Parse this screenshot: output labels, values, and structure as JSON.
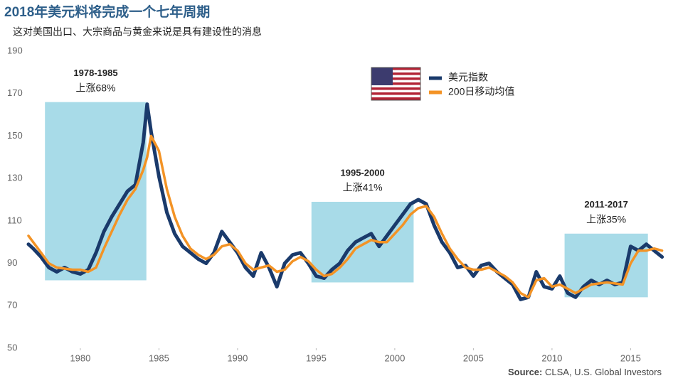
{
  "chart_data": {
    "type": "line",
    "title": "2018年美元料将完成一个七年周期",
    "subtitle": "这对美国出口、大宗商品与黄金来说是具有建设性的消息",
    "source_label": "Source:",
    "source": "CLSA, U.S. Global Investors",
    "xlim": [
      1976.7,
      2017.2
    ],
    "ylim": [
      50,
      190
    ],
    "xticks": [
      1980,
      1985,
      1990,
      1995,
      2000,
      2005,
      2010,
      2015
    ],
    "yticks": [
      50,
      70,
      90,
      110,
      130,
      150,
      170,
      190
    ],
    "legend": "top-right",
    "x": [
      1976.7,
      1977,
      1977.5,
      1978,
      1978.5,
      1979,
      1979.5,
      1980,
      1980.5,
      1981,
      1981.5,
      1982,
      1982.5,
      1983,
      1983.5,
      1984,
      1984.25,
      1984.5,
      1985,
      1985.5,
      1986,
      1986.5,
      1987,
      1987.5,
      1988,
      1988.5,
      1989,
      1989.5,
      1990,
      1990.5,
      1991,
      1991.5,
      1992,
      1992.5,
      1993,
      1993.5,
      1994,
      1994.5,
      1995,
      1995.5,
      1996,
      1996.5,
      1997,
      1997.5,
      1998,
      1998.5,
      1999,
      1999.5,
      2000,
      2000.5,
      2001,
      2001.5,
      2002,
      2002.5,
      2003,
      2003.5,
      2004,
      2004.5,
      2005,
      2005.5,
      2006,
      2006.5,
      2007,
      2007.5,
      2008,
      2008.5,
      2009,
      2009.5,
      2010,
      2010.5,
      2011,
      2011.5,
      2012,
      2012.5,
      2013,
      2013.5,
      2014,
      2014.5,
      2015,
      2015.5,
      2016,
      2016.5,
      2017
    ],
    "series": [
      {
        "name": "美元指数",
        "color": "#1a3a6b",
        "width": 5,
        "values": [
          99,
          97,
          93,
          88,
          86,
          88,
          86,
          85,
          87,
          95,
          105,
          112,
          118,
          124,
          127,
          147,
          165,
          152,
          131,
          114,
          104,
          98,
          95,
          92,
          90,
          95,
          105,
          100,
          95,
          88,
          84,
          95,
          88,
          79,
          90,
          94,
          95,
          90,
          84,
          83,
          87,
          90,
          96,
          100,
          102,
          104,
          98,
          103,
          108,
          113,
          118,
          120,
          118,
          108,
          100,
          95,
          88,
          89,
          84,
          89,
          90,
          86,
          83,
          80,
          73,
          74,
          86,
          79,
          78,
          84,
          76,
          74,
          79,
          82,
          80,
          82,
          80,
          81,
          98,
          96,
          99,
          96,
          93
        ]
      },
      {
        "name": "200日移动均值",
        "color": "#f39325",
        "width": 3.5,
        "values": [
          103,
          100,
          95,
          90,
          88,
          87.5,
          87,
          87,
          86,
          88,
          97,
          105,
          113,
          120,
          125,
          134,
          140,
          150,
          143,
          125,
          112,
          103,
          97,
          94,
          92,
          94,
          98,
          99,
          96,
          90,
          87,
          88,
          89,
          86,
          87,
          91,
          93,
          91,
          87,
          84,
          85,
          88,
          92,
          97,
          99,
          101,
          100,
          100,
          104,
          108,
          113,
          116,
          117,
          112,
          104,
          97,
          92,
          88,
          87,
          87,
          88,
          86,
          84,
          81,
          76,
          74,
          82,
          83,
          79,
          80,
          78,
          76,
          78,
          80,
          80.5,
          81,
          80.5,
          80,
          90,
          96,
          96,
          97,
          96
        ]
      }
    ],
    "highlights": [
      {
        "label": "1978-1985",
        "text": "上涨68%",
        "x": [
          1977.75,
          1984.2
        ],
        "y": [
          82,
          166
        ]
      },
      {
        "label": "1995-2000",
        "text": "上涨41%",
        "x": [
          1994.7,
          2001.2
        ],
        "y": [
          81,
          119
        ]
      },
      {
        "label": "2011-2017",
        "text": "上涨35%",
        "x": [
          2010.8,
          2016.1
        ],
        "y": [
          74,
          104
        ]
      }
    ],
    "highlight_color": "#a8dbe8"
  }
}
